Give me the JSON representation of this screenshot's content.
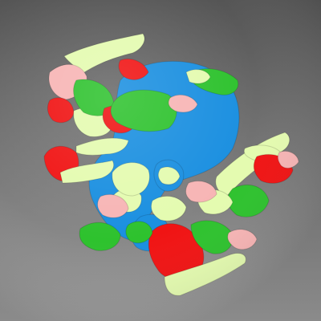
{
  "viewport": {
    "background_top": "#555555",
    "background_bottom": "#9a9a9a"
  },
  "model": {
    "kind": "colored-3d-surface",
    "palette": {
      "blue": "#1a8fe0",
      "red": "#f01414",
      "green": "#2ec22e",
      "light_green": "#e4fbb0",
      "pink": "#f7b5b5"
    }
  }
}
